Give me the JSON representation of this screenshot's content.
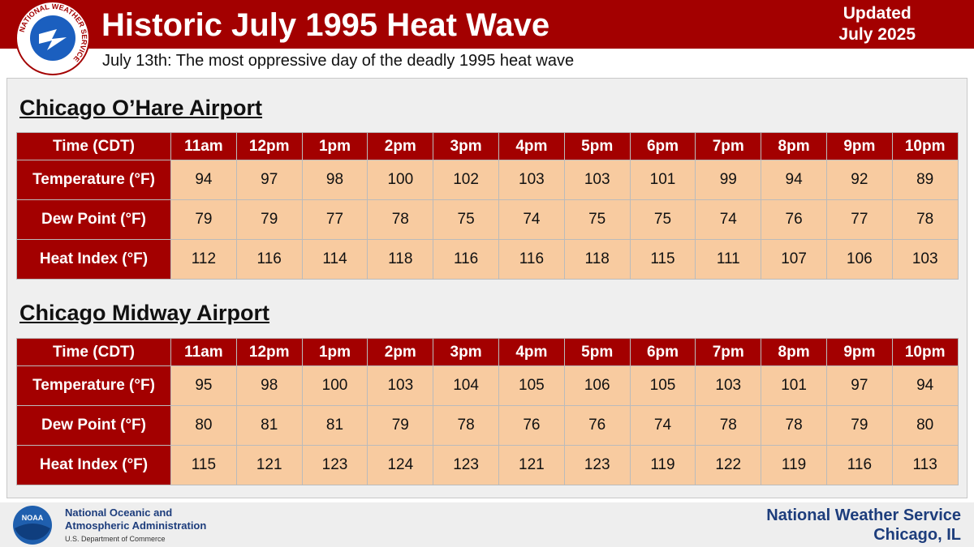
{
  "header": {
    "title": "Historic July 1995 Heat Wave",
    "updated": [
      "Updated",
      "July 2025"
    ],
    "subtitle": "July 13th: The most oppressive day of the deadly 1995 heat wave",
    "logo_text": "NATIONAL WEATHER SERVICE"
  },
  "tables": [
    {
      "title": "Chicago O’Hare Airport",
      "columns": [
        "Time (CDT)",
        "11am",
        "12pm",
        "1pm",
        "2pm",
        "3pm",
        "4pm",
        "5pm",
        "6pm",
        "7pm",
        "8pm",
        "9pm",
        "10pm"
      ],
      "rows": [
        [
          "Temperature (°F)",
          94,
          97,
          98,
          100,
          102,
          103,
          103,
          101,
          99,
          94,
          92,
          89
        ],
        [
          "Dew Point (°F)",
          79,
          79,
          77,
          78,
          75,
          74,
          75,
          75,
          74,
          76,
          77,
          78
        ],
        [
          "Heat Index (°F)",
          112,
          116,
          114,
          118,
          116,
          116,
          118,
          115,
          111,
          107,
          106,
          103
        ]
      ]
    },
    {
      "title": "Chicago Midway Airport",
      "columns": [
        "Time (CDT)",
        "11am",
        "12pm",
        "1pm",
        "2pm",
        "3pm",
        "4pm",
        "5pm",
        "6pm",
        "7pm",
        "8pm",
        "9pm",
        "10pm"
      ],
      "rows": [
        [
          "Temperature (°F)",
          95,
          98,
          100,
          103,
          104,
          105,
          106,
          105,
          103,
          101,
          97,
          94
        ],
        [
          "Dew Point (°F)",
          80,
          81,
          81,
          79,
          78,
          76,
          76,
          74,
          78,
          78,
          79,
          80
        ],
        [
          "Heat Index (°F)",
          115,
          121,
          123,
          124,
          123,
          121,
          123,
          119,
          122,
          119,
          116,
          113
        ]
      ]
    }
  ],
  "footer": {
    "noaa_logo": "NOAA",
    "agency": [
      "National Oceanic and",
      "Atmospheric Administration"
    ],
    "department": "U.S. Department of Commerce",
    "office": [
      "National Weather Service",
      "Chicago, IL"
    ]
  }
}
